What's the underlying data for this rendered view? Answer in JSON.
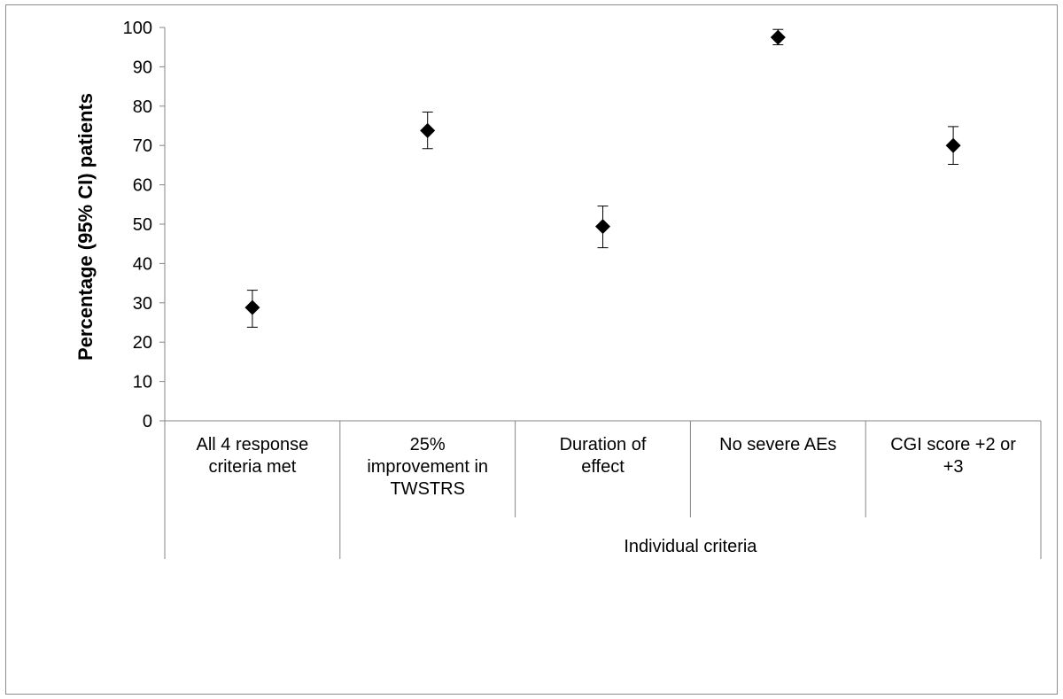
{
  "chart_data": {
    "type": "scatter",
    "title": "",
    "ylabel": "Percentage (95% CI) patients",
    "xlabel": "",
    "ylim": [
      0,
      100
    ],
    "yticks": [
      0,
      10,
      20,
      30,
      40,
      50,
      60,
      70,
      80,
      90,
      100
    ],
    "categories": [
      [
        "All 4 response",
        "criteria met"
      ],
      [
        "25%",
        "improvement in",
        "TWSTRS"
      ],
      [
        "Duration of",
        "effect"
      ],
      [
        "No severe AEs"
      ],
      [
        "CGI score +2 or",
        "+3"
      ]
    ],
    "group_label": "Individual criteria",
    "values": [
      28.8,
      73.8,
      49.4,
      97.5,
      70.0
    ],
    "ci_lower": [
      23.8,
      69.2,
      44.0,
      95.6,
      65.2
    ],
    "ci_upper": [
      33.2,
      78.5,
      54.6,
      99.5,
      74.8
    ],
    "marker_color": "#000000"
  }
}
